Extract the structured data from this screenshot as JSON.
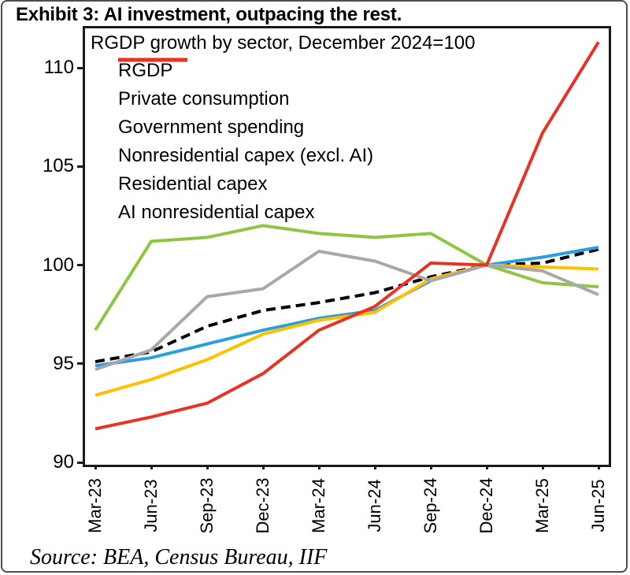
{
  "figure": {
    "title": "Exhibit 3: AI investment, outpacing the rest.",
    "source": "Source: BEA, Census Bureau, IIF"
  },
  "chart_data": {
    "type": "line",
    "title": "RGDP growth by sector, December 2024=100",
    "xlabel": "",
    "ylabel": "",
    "categories": [
      "Mar-23",
      "Jun-23",
      "Sep-23",
      "Dec-23",
      "Mar-24",
      "Jun-24",
      "Sep-24",
      "Dec-24",
      "Mar-25",
      "Jun-25"
    ],
    "yticks": [
      90,
      95,
      100,
      105,
      110
    ],
    "ylim": [
      90,
      112
    ],
    "grid": false,
    "legend_position": "top-left-inside",
    "series": [
      {
        "name": "RGDP",
        "color": "#000000",
        "dashed": true,
        "values": [
          95.1,
          95.6,
          96.9,
          97.7,
          98.1,
          98.6,
          99.4,
          100.0,
          100.1,
          100.8
        ]
      },
      {
        "name": "Private consumption",
        "color": "#2A9EE0",
        "dashed": false,
        "values": [
          94.9,
          95.3,
          96.0,
          96.7,
          97.3,
          97.7,
          99.2,
          100.0,
          100.4,
          100.9
        ]
      },
      {
        "name": "Government spending",
        "color": "#FFC000",
        "dashed": false,
        "values": [
          93.4,
          94.2,
          95.2,
          96.5,
          97.2,
          97.6,
          99.3,
          100.0,
          99.9,
          99.8
        ]
      },
      {
        "name": "Nonresidential capex (excl. AI)",
        "color": "#8EC641",
        "dashed": false,
        "values": [
          96.7,
          101.2,
          101.4,
          102.0,
          101.6,
          101.4,
          101.6,
          100.0,
          99.1,
          98.9
        ]
      },
      {
        "name": "Residential capex",
        "color": "#A8A8A8",
        "dashed": false,
        "values": [
          94.7,
          95.7,
          98.4,
          98.8,
          100.7,
          100.2,
          99.2,
          100.0,
          99.7,
          98.5
        ]
      },
      {
        "name": "AI nonresidential capex",
        "color": "#E93223",
        "dashed": false,
        "values": [
          91.7,
          92.3,
          93.0,
          94.5,
          96.7,
          97.9,
          100.1,
          100.0,
          106.7,
          111.3
        ]
      }
    ]
  }
}
